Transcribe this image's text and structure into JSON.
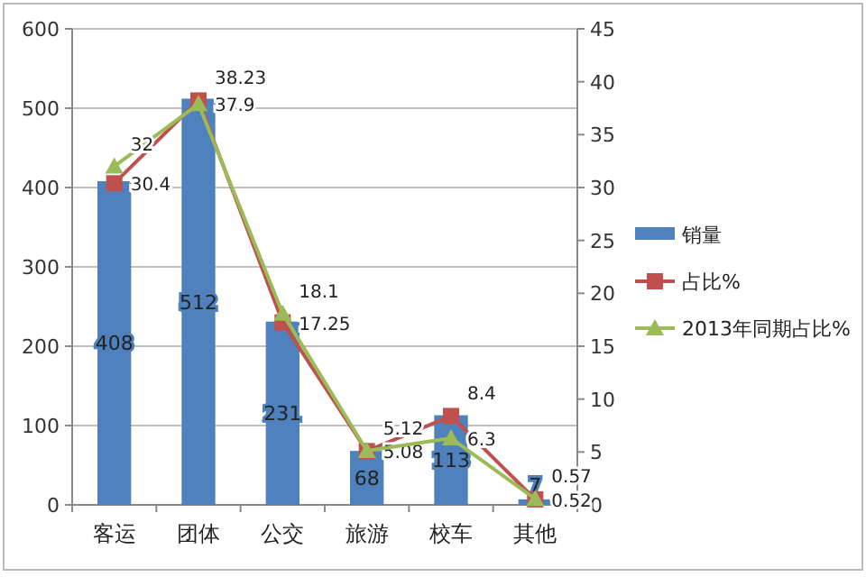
{
  "chart_data": {
    "type": "bar",
    "categories": [
      "客运",
      "团体",
      "公交",
      "旅游",
      "校车",
      "其他"
    ],
    "series": [
      {
        "name": "销量",
        "color": "#4f81bd",
        "values": [
          408,
          512,
          231,
          68,
          113,
          7
        ]
      },
      {
        "name": "占比%",
        "type": "line",
        "axis": "y2",
        "color": "#c0504d",
        "marker": "square",
        "values": [
          30.4,
          38.23,
          17.25,
          5.08,
          8.4,
          0.52
        ]
      },
      {
        "name": "2013年同期占比%",
        "type": "line",
        "axis": "y2",
        "color": "#9bbb59",
        "marker": "triangle",
        "values": [
          32,
          37.9,
          18.1,
          5.12,
          6.3,
          0.57
        ]
      }
    ],
    "ylim": [
      0,
      600
    ],
    "yticks": [
      0,
      100,
      200,
      300,
      400,
      500,
      600
    ],
    "y2lim": [
      0,
      45
    ],
    "y2ticks": [
      0,
      5,
      10,
      15,
      20,
      25,
      30,
      35,
      40,
      45
    ],
    "grid": "y",
    "legend": "right",
    "data_labels": true
  }
}
